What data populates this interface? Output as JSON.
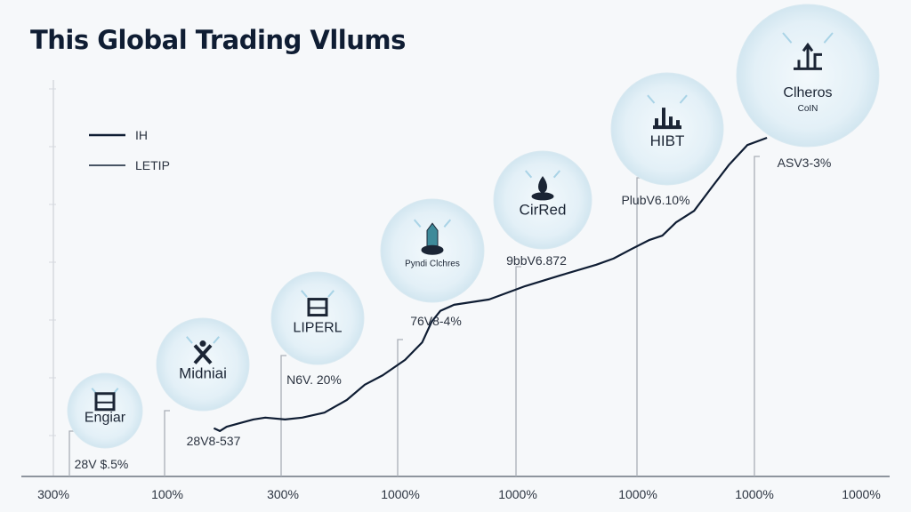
{
  "chart_data": {
    "type": "line",
    "title": "This Global Trading Vllums",
    "xlabel": "",
    "ylabel": "",
    "grid": false,
    "legend": {
      "placement": "top-left",
      "entries": [
        "IH",
        "LETIP"
      ]
    },
    "x_tick_labels": [
      "300%",
      "100%",
      "300%",
      "1000%",
      "1000%",
      "1000%",
      "1000%",
      "1000%"
    ],
    "xlim": [
      0,
      100
    ],
    "ylim": [
      0,
      100
    ],
    "series": [
      {
        "name": "IH",
        "x": [
          21.2,
          21.9,
          22.7,
          24.3,
          25.8,
          27.2,
          29.5,
          31.5,
          34.1,
          36.7,
          38.8,
          40.9,
          43.5,
          45.5,
          46.6,
          47.6,
          49.2,
          53.3,
          57.5,
          61.6,
          65.8,
          67.8,
          69.9,
          72.0,
          73.5,
          75.1,
          77.2,
          79.3,
          81.3,
          83.4,
          85.7
        ],
        "y": [
          11.2,
          10.5,
          11.6,
          12.6,
          13.5,
          14.0,
          13.5,
          14.0,
          15.3,
          18.6,
          22.6,
          25.1,
          29.1,
          33.7,
          39.1,
          41.9,
          43.5,
          44.9,
          48.4,
          51.2,
          54.0,
          55.6,
          58.1,
          60.5,
          61.6,
          65.1,
          68.1,
          74.4,
          80.2,
          85.3,
          87.2
        ]
      }
    ],
    "annotations": [
      {
        "name": "Engiar",
        "sub": "",
        "value_label": "28V $.5%"
      },
      {
        "name": "Midniai",
        "sub": "",
        "value_label": "28V8-537"
      },
      {
        "name": "LIPERL",
        "sub": "",
        "value_label": "N6V. 20%"
      },
      {
        "name": "Pyndi Clchres",
        "sub": "",
        "value_label": "76V8-4%"
      },
      {
        "name": "CirRed",
        "sub": "",
        "value_label": "9bbV6.872"
      },
      {
        "name": "HIBT",
        "sub": "",
        "value_label": "PlubV6.10%"
      },
      {
        "name": "Clheros",
        "sub": "CoIN",
        "value_label": "ASV3-3%"
      }
    ],
    "colors": {
      "line": "#0f1d33",
      "bubble": "#d7eaf3",
      "axis": "#8e959e"
    }
  }
}
